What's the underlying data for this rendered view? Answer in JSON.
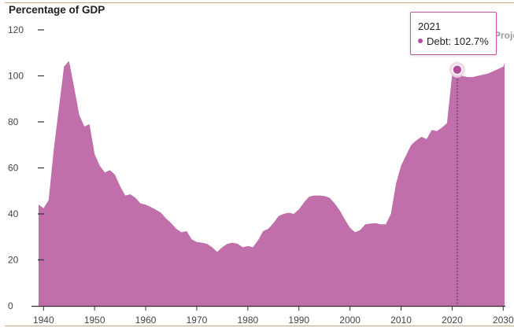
{
  "chart_data": {
    "type": "area",
    "ylabel": "Percentage of GDP",
    "xlim": [
      1939,
      2032
    ],
    "ylim": [
      0,
      120
    ],
    "x_ticks": [
      1940,
      1950,
      1960,
      1970,
      1980,
      1990,
      2000,
      2010,
      2020,
      2030
    ],
    "y_ticks": [
      0,
      20,
      40,
      60,
      80,
      100,
      120
    ],
    "grid": false,
    "color": "#c06fab",
    "series": [
      {
        "name": "Debt",
        "x": [
          1939,
          1940,
          1941,
          1942,
          1943,
          1944,
          1945,
          1946,
          1947,
          1948,
          1949,
          1950,
          1951,
          1952,
          1953,
          1954,
          1955,
          1956,
          1957,
          1958,
          1959,
          1960,
          1961,
          1962,
          1963,
          1964,
          1965,
          1966,
          1967,
          1968,
          1969,
          1970,
          1971,
          1972,
          1973,
          1974,
          1975,
          1976,
          1977,
          1978,
          1979,
          1980,
          1981,
          1982,
          1983,
          1984,
          1985,
          1986,
          1987,
          1988,
          1989,
          1990,
          1991,
          1992,
          1993,
          1994,
          1995,
          1996,
          1997,
          1998,
          1999,
          2000,
          2001,
          2002,
          2003,
          2004,
          2005,
          2006,
          2007,
          2008,
          2009,
          2010,
          2011,
          2012,
          2013,
          2014,
          2015,
          2016,
          2017,
          2018,
          2019,
          2020,
          2021,
          2022,
          2023,
          2024,
          2025,
          2026,
          2027,
          2028,
          2029,
          2030,
          2031,
          2032
        ],
        "y": [
          44,
          42.5,
          46,
          68,
          86,
          104,
          106.5,
          95,
          83,
          78,
          79,
          66,
          61,
          58,
          59,
          57,
          52,
          48,
          48.5,
          47,
          44.5,
          44,
          43,
          41.8,
          40.5,
          38,
          36,
          33.5,
          32,
          32.5,
          29,
          27.8,
          27.5,
          27,
          25.5,
          23.5,
          25.5,
          27,
          27.5,
          27,
          25.5,
          26,
          25.5,
          28.5,
          32.5,
          33.5,
          36,
          39,
          40,
          40.5,
          40,
          42,
          45,
          47.5,
          48,
          48,
          47.8,
          47,
          44.5,
          41.5,
          37.5,
          34,
          32,
          33,
          35.5,
          35.8,
          36,
          35.5,
          35.5,
          40,
          53,
          61,
          65.5,
          70,
          72,
          73.5,
          72.5,
          76.5,
          76,
          77.5,
          79.5,
          100.5,
          102.7,
          100,
          99.5,
          99.5,
          100,
          100.5,
          101,
          102,
          103,
          104,
          105.5,
          107
        ]
      }
    ],
    "projected_marker_x": 2021,
    "tooltip": {
      "year": "2021",
      "series_label": "Debt",
      "value_text": "102.7%"
    },
    "projected_label": "Projected"
  }
}
